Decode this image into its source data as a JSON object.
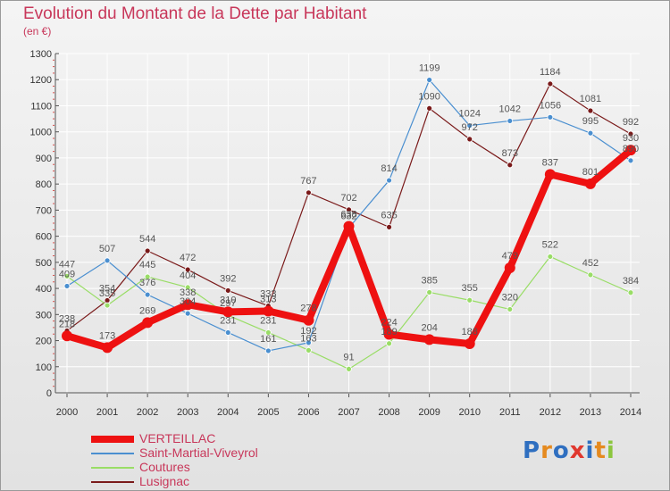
{
  "title": "Evolution du Montant de la Dette par Habitant",
  "unit_label": "(en €)",
  "logo": {
    "text": "Proxiti",
    "letter_colors": [
      "#2f6fc0",
      "#e58a1f",
      "#2f6fc0",
      "#e0382e",
      "#2f6fc0",
      "#e58a1f",
      "#8cc63f"
    ]
  },
  "chart_data": {
    "type": "line",
    "title": "Evolution du Montant de la Dette par Habitant",
    "ylabel": "(en €)",
    "xlabel": "",
    "ylim": [
      0,
      1300
    ],
    "yticks": [
      0,
      100,
      200,
      300,
      400,
      500,
      600,
      700,
      800,
      900,
      1000,
      1100,
      1200,
      1300
    ],
    "grid": true,
    "legend_position": "bottom-left",
    "x": [
      2000,
      2001,
      2002,
      2003,
      2004,
      2005,
      2006,
      2007,
      2008,
      2009,
      2010,
      2011,
      2012,
      2013,
      2014
    ],
    "series": [
      {
        "name": "VERTEILLAC",
        "color": "#ee1111",
        "values": [
          218,
          173,
          269,
          338,
          310,
          313,
          278,
          638,
          224,
          204,
          188,
          479,
          837,
          801,
          930
        ]
      },
      {
        "name": "Saint-Martial-Viveyrol",
        "color": "#4a8fd0",
        "values": [
          409,
          507,
          376,
          304,
          231,
          161,
          192,
          632,
          814,
          1199,
          1024,
          1042,
          1056,
          995,
          890
        ]
      },
      {
        "name": "Coutures",
        "color": "#99dd66",
        "values": [
          447,
          335,
          445,
          404,
          297,
          231,
          163,
          91,
          189,
          385,
          355,
          320,
          522,
          452,
          384
        ]
      },
      {
        "name": "Lusignac",
        "color": "#7a1a1a",
        "values": [
          238,
          354,
          544,
          472,
          392,
          333,
          767,
          702,
          635,
          1090,
          972,
          873,
          1184,
          1081,
          992
        ]
      }
    ]
  }
}
